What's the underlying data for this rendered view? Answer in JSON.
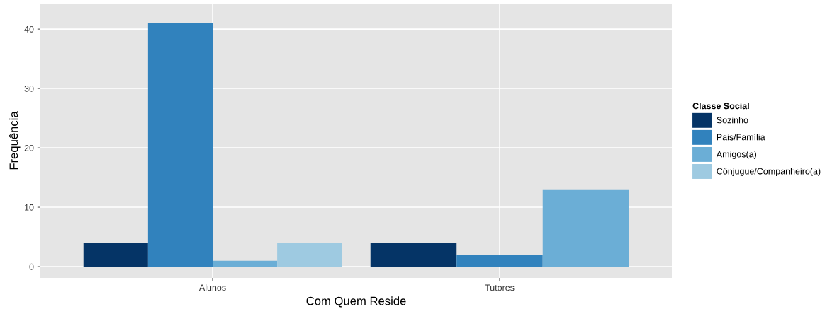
{
  "chart_data": {
    "type": "bar",
    "xlabel": "Com Quem Reside",
    "ylabel": "Frequência",
    "legend_title": "Classe Social",
    "categories": [
      "Alunos",
      "Tutores"
    ],
    "series": [
      {
        "name": "Sozinho",
        "color": "#053466",
        "values": [
          4,
          4
        ]
      },
      {
        "name": "Pais/Família",
        "color": "#3182bd",
        "values": [
          41,
          2
        ]
      },
      {
        "name": "Amigos(a)",
        "color": "#6baed6",
        "values": [
          1,
          13
        ]
      },
      {
        "name": "Cônjugue/Companheiro(a)",
        "color": "#9ecae1",
        "values": [
          4,
          null
        ]
      }
    ],
    "ylim": [
      -1.9,
      44.3
    ],
    "yticks": [
      0,
      10,
      20,
      30,
      40
    ],
    "grid": true,
    "legend": "right"
  }
}
